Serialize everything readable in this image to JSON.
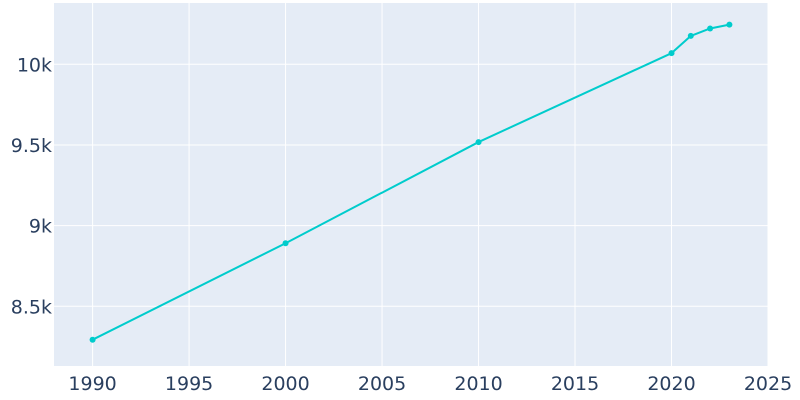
{
  "chart_data": {
    "type": "line",
    "title": "",
    "xlabel": "",
    "ylabel": "",
    "x": [
      1990,
      2000,
      2010,
      2020,
      2021,
      2022,
      2023
    ],
    "series": [
      {
        "values": [
          8293,
          8891,
          9518,
          10069,
          10176,
          10222,
          10246
        ]
      }
    ],
    "xlim": [
      1988,
      2025
    ],
    "ylim": [
      8130,
      10380
    ],
    "x_ticks": [
      1990,
      1995,
      2000,
      2005,
      2010,
      2015,
      2020,
      2025
    ],
    "x_tick_labels": [
      "1990",
      "1995",
      "2000",
      "2005",
      "2010",
      "2015",
      "2020",
      "2025"
    ],
    "y_ticks": [
      8500,
      9000,
      9500,
      10000
    ],
    "y_tick_labels": [
      "8.5k",
      "9k",
      "9.5k",
      "10k"
    ],
    "grid": true,
    "legend": "none",
    "colors": {
      "line": "#00cccc",
      "plot_bg": "#e5ecf6",
      "grid": "#ffffff",
      "text": "#2a3f5f"
    }
  }
}
